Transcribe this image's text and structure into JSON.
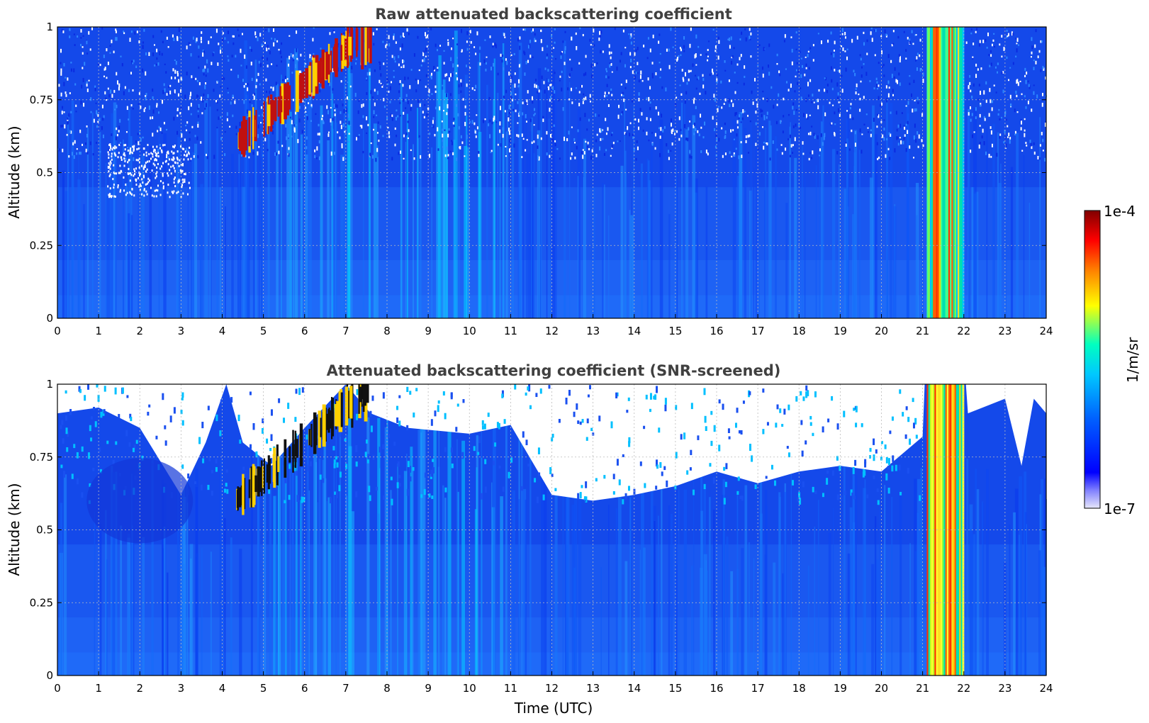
{
  "chart_data": [
    {
      "type": "heatmap",
      "title": "Raw attenuated backscattering coefficient",
      "xlabel": "",
      "ylabel": "Altitude (km)",
      "xlim": [
        0,
        24
      ],
      "ylim": [
        0,
        1
      ],
      "xticks": [
        "0",
        "1",
        "2",
        "3",
        "4",
        "5",
        "6",
        "7",
        "8",
        "9",
        "10",
        "11",
        "12",
        "13",
        "14",
        "15",
        "16",
        "17",
        "18",
        "19",
        "20",
        "21",
        "22",
        "23",
        "24"
      ],
      "yticks": [
        "0",
        "0.25",
        "0.5",
        "0.75",
        "1"
      ],
      "grid": true,
      "screened": false,
      "cloud_band_x": [
        21.1,
        22.0
      ],
      "plume_x": [
        4.3,
        7.6
      ]
    },
    {
      "type": "heatmap",
      "title": "Attenuated backscattering coefficient (SNR-screened)",
      "xlabel": "Time (UTC)",
      "ylabel": "Altitude (km)",
      "xlim": [
        0,
        24
      ],
      "ylim": [
        0,
        1
      ],
      "xticks": [
        "0",
        "1",
        "2",
        "3",
        "4",
        "5",
        "6",
        "7",
        "8",
        "9",
        "10",
        "11",
        "12",
        "13",
        "14",
        "15",
        "16",
        "17",
        "18",
        "19",
        "20",
        "21",
        "22",
        "23",
        "24"
      ],
      "yticks": [
        "0",
        "0.25",
        "0.5",
        "0.75",
        "1"
      ],
      "grid": true,
      "screened": true,
      "cloud_band_x": [
        21.1,
        22.0
      ],
      "plume_x": [
        4.3,
        7.6
      ]
    }
  ],
  "colorbar": {
    "max_label": "1e-4",
    "min_label": "1e-7",
    "label": "1/m/sr",
    "scale": "log",
    "colormap": [
      "#e6e6fa",
      "#0000ff",
      "#00c8ff",
      "#00ffc0",
      "#ffff00",
      "#ff8000",
      "#ff0000",
      "#800000"
    ]
  }
}
